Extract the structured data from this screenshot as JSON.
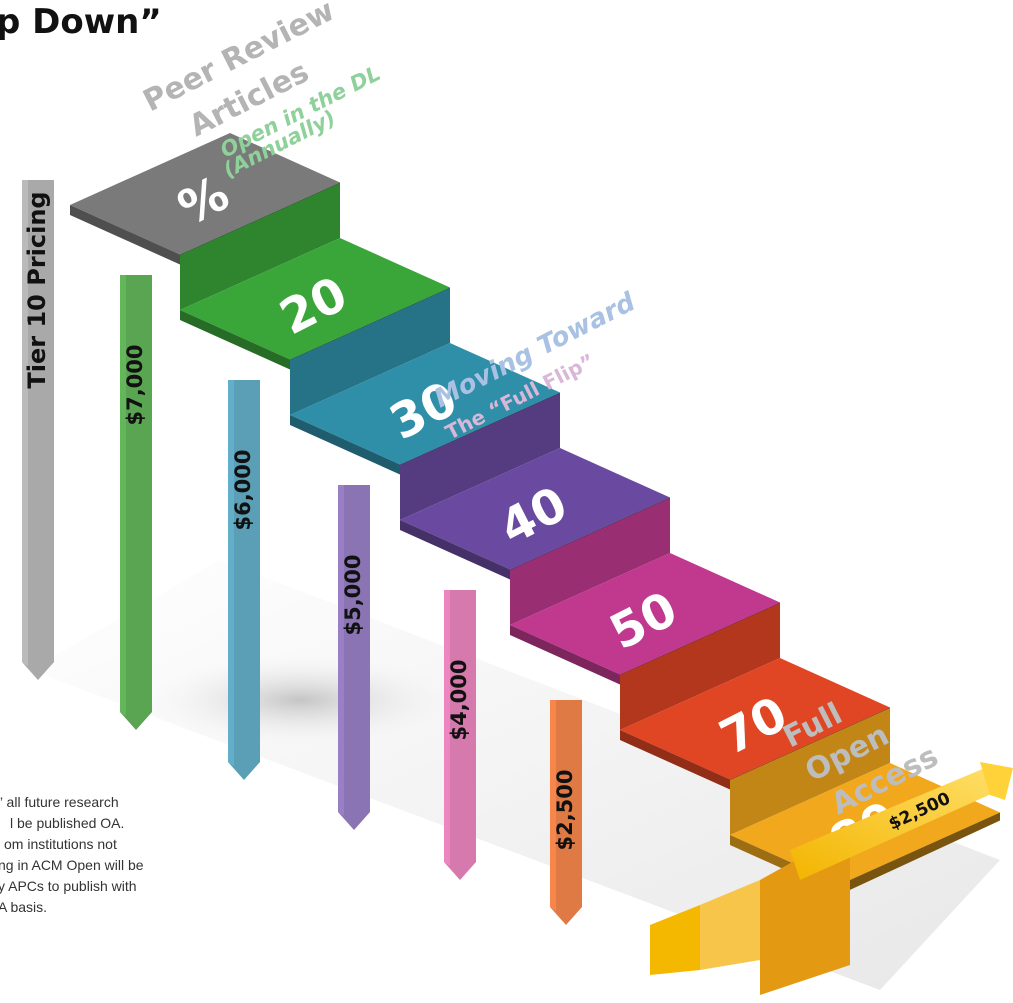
{
  "title": "p Down”",
  "header_labels": {
    "peer_review": "Peer Review",
    "articles": "Articles",
    "open_dl": "Open in the DL",
    "annually": "(Annually)"
  },
  "moving": {
    "line1": "Moving Toward",
    "line2": "The “Full Flip”"
  },
  "full_oa": {
    "line1": "Full",
    "line2": "Open",
    "line3": "Access"
  },
  "steps": [
    {
      "label": "%",
      "color": "#7a7a7a"
    },
    {
      "label": "20",
      "color": "#3aa63a"
    },
    {
      "label": "30",
      "color": "#2f8ea8"
    },
    {
      "label": "40",
      "color": "#6a4aa0"
    },
    {
      "label": "50",
      "color": "#c0398f"
    },
    {
      "label": "70",
      "color": "#e04524"
    },
    {
      "label": "80",
      "color": "#f2a81d"
    }
  ],
  "pillars": [
    {
      "label": "Tier 10 Pricing",
      "color": "#a9a9a9"
    },
    {
      "label": "$7,000",
      "color": "#5aa552"
    },
    {
      "label": "$6,000",
      "color": "#5a9fb6"
    },
    {
      "label": "$5,000",
      "color": "#8a74b3"
    },
    {
      "label": "$4,000",
      "color": "#d679ad"
    },
    {
      "label": "$2,500",
      "color": "#e07a45"
    }
  ],
  "final_arrow_label": "$2,500",
  "note_lines": [
    "” all future research",
    "l be published OA.",
    "om institutions not",
    "ng in ACM Open will be",
    "y APCs to publish with",
    "A basis."
  ]
}
